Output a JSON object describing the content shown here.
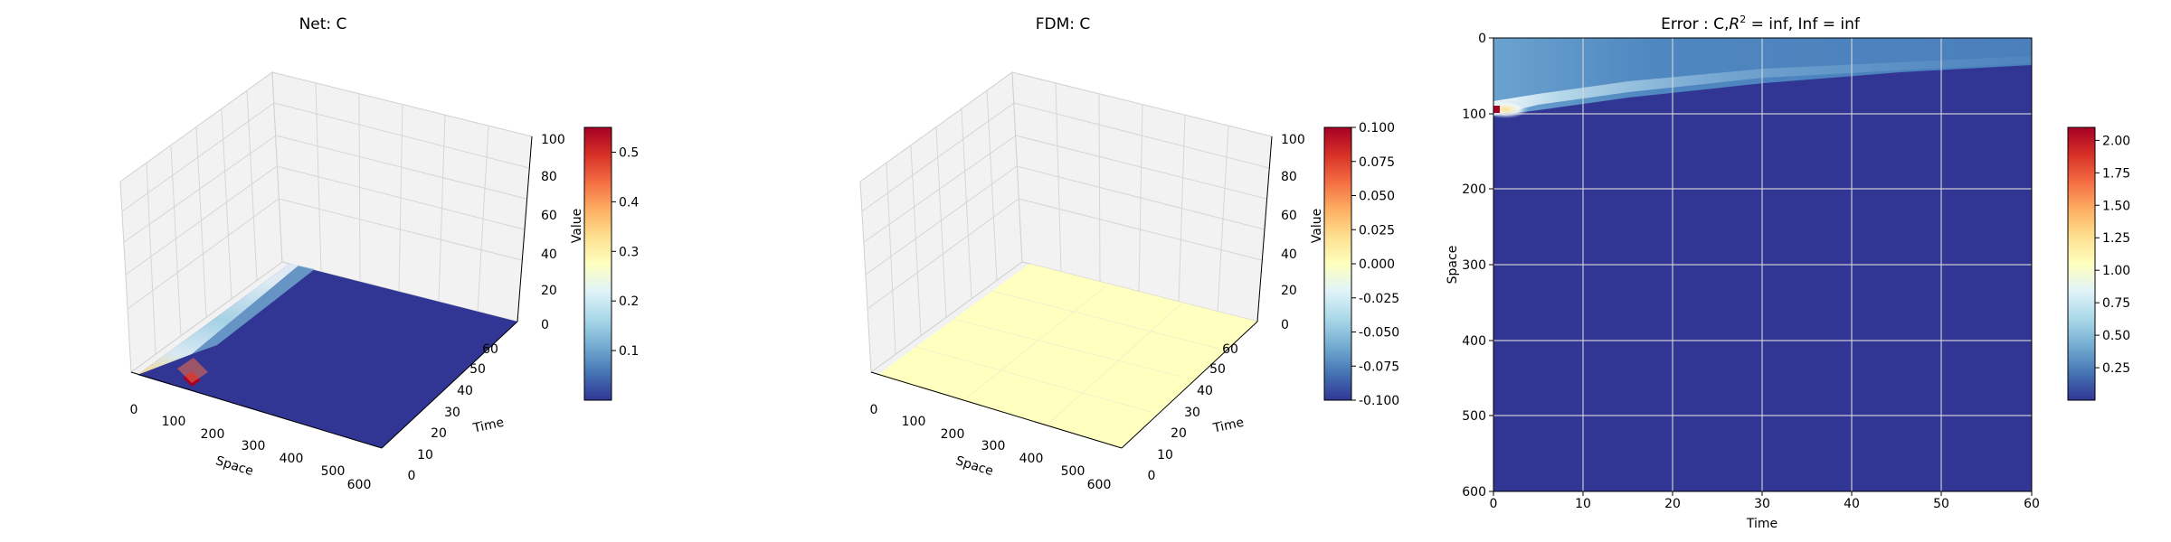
{
  "figure": {
    "background": "#ffffff"
  },
  "colormap": [
    "#313695",
    "#4575b4",
    "#74add1",
    "#abd9e9",
    "#e0f3f8",
    "#ffffbf",
    "#fee090",
    "#fdae61",
    "#f46d43",
    "#d73027",
    "#a50026"
  ],
  "chart_data": [
    {
      "type": "surface3d",
      "title": "Net: C",
      "xlabel": "Space",
      "ylabel": "Time",
      "zlabel": "Value",
      "xlim": [
        0,
        600
      ],
      "ylim": [
        0,
        60
      ],
      "zlim": [
        0,
        100
      ],
      "xticks": [
        "0",
        "100",
        "200",
        "300",
        "400",
        "500",
        "600"
      ],
      "yticks": [
        "0",
        "10",
        "20",
        "30",
        "40",
        "50",
        "60"
      ],
      "zticks": [
        "0",
        "20",
        "40",
        "60",
        "80",
        "100"
      ],
      "surface": "near-zero everywhere; peak ~0.55 near Space=100, Time=0, decaying with Space and Time",
      "colorbar": {
        "min": 0.0,
        "max": 0.55,
        "ticks": [
          "0.1",
          "0.2",
          "0.3",
          "0.4",
          "0.5"
        ]
      }
    },
    {
      "type": "surface3d",
      "title": "FDM: C",
      "xlabel": "Space",
      "ylabel": "Time",
      "zlabel": "Value",
      "xlim": [
        0,
        600
      ],
      "ylim": [
        0,
        60
      ],
      "zlim": [
        0,
        100
      ],
      "xticks": [
        "0",
        "100",
        "200",
        "300",
        "400",
        "500",
        "600"
      ],
      "yticks": [
        "0",
        "10",
        "20",
        "30",
        "40",
        "50",
        "60"
      ],
      "zticks": [
        "0",
        "20",
        "40",
        "60",
        "80",
        "100"
      ],
      "surface": "constant 0 over whole domain",
      "colorbar": {
        "min": -0.1,
        "max": 0.1,
        "ticks": [
          "-0.100",
          "-0.075",
          "-0.050",
          "-0.025",
          "0.000",
          "0.025",
          "0.050",
          "0.075",
          "0.100"
        ]
      }
    },
    {
      "type": "heatmap",
      "title_prefix": "Error : C,",
      "title_r": "R",
      "title_sup": "2",
      "title_suffix": " = inf, Inf = inf",
      "xlabel": "Time",
      "ylabel": "Space",
      "xlim": [
        0,
        60
      ],
      "ylim": [
        600,
        0
      ],
      "xticks": [
        "0",
        "10",
        "20",
        "30",
        "40",
        "50",
        "60"
      ],
      "yticks": [
        "0",
        "100",
        "200",
        "300",
        "400",
        "500",
        "600"
      ],
      "grid": true,
      "surface": "max ~2.05 at Space=100, Time=0; band ~0.3-0.6 for Space<100 widening with Time; ~0.0 elsewhere",
      "colorbar": {
        "min": 0.0,
        "max": 2.1,
        "ticks": [
          "0.25",
          "0.50",
          "0.75",
          "1.00",
          "1.25",
          "1.50",
          "1.75",
          "2.00"
        ]
      }
    }
  ]
}
